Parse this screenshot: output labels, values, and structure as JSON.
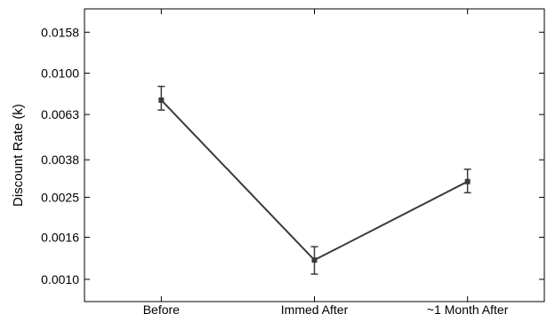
{
  "chart_data": {
    "type": "line",
    "title": "",
    "xlabel": "",
    "ylabel": "Discount Rate (k)",
    "y_scale": "log",
    "ylim": [
      0.00078,
      0.0205
    ],
    "categories": [
      "Before",
      "Immed After",
      "~1 Month After"
    ],
    "yticks": [
      "0.0010",
      "0.0016",
      "0.0025",
      "0.0038",
      "0.0063",
      "0.0100",
      "0.0158"
    ],
    "series": [
      {
        "values": [
          0.0074,
          0.00124,
          0.00298
        ],
        "error_low": [
          0.00662,
          0.00106,
          0.00263
        ],
        "error_high": [
          0.00862,
          0.00144,
          0.00342
        ]
      }
    ],
    "grid": false,
    "line_color": "#3a3a3a"
  }
}
